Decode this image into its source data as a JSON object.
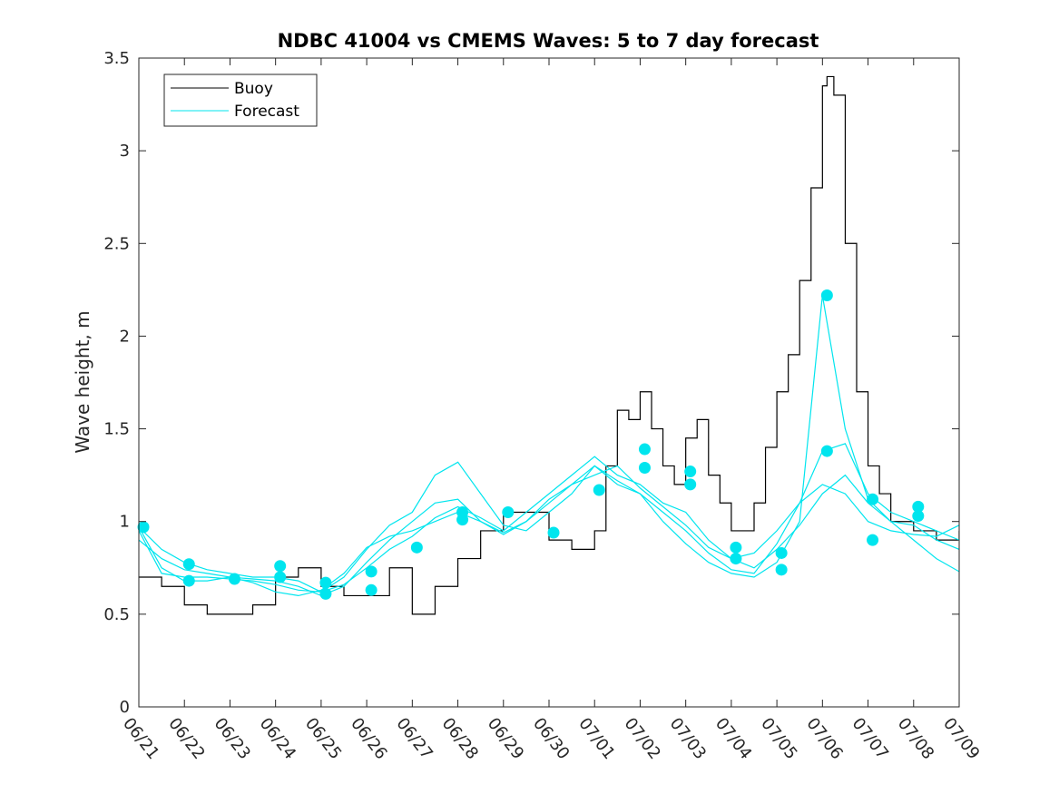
{
  "chart_data": {
    "type": "line",
    "title": "NDBC 41004 vs CMEMS Waves: 5 to 7 day forecast",
    "xlabel": "",
    "ylabel": "Wave height, m",
    "x_ticks": [
      "06/21",
      "06/22",
      "06/23",
      "06/24",
      "06/25",
      "06/26",
      "06/27",
      "06/28",
      "06/29",
      "06/30",
      "07/01",
      "07/02",
      "07/03",
      "07/04",
      "07/05",
      "07/06",
      "07/07",
      "07/08",
      "07/09"
    ],
    "y_ticks": [
      "0",
      "0.5",
      "1",
      "1.5",
      "2",
      "2.5",
      "3",
      "3.5"
    ],
    "xlim": [
      0,
      18
    ],
    "ylim": [
      0,
      3.5
    ],
    "grid": false,
    "legend_position": "top-left",
    "legend": [
      {
        "name": "Buoy",
        "color": "#000000"
      },
      {
        "name": "Forecast",
        "color": "#00e5ee"
      }
    ],
    "buoy_color": "#000000",
    "forecast_color": "#00e5ee",
    "series": [
      {
        "name": "Buoy",
        "x": [
          0,
          0.5,
          1,
          1.5,
          2,
          2.5,
          3,
          3.5,
          4,
          4.5,
          5,
          5.5,
          6,
          6.5,
          7,
          7.5,
          8,
          8.5,
          9,
          9.5,
          10,
          10.25,
          10.5,
          10.75,
          11,
          11.25,
          11.5,
          11.75,
          12,
          12.25,
          12.5,
          12.75,
          13,
          13.5,
          13.75,
          14,
          14.25,
          14.5,
          14.75,
          15,
          15.1,
          15.25,
          15.5,
          15.75,
          16,
          16.25,
          16.5,
          17,
          17.5,
          18
        ],
        "y": [
          0.7,
          0.65,
          0.55,
          0.5,
          0.5,
          0.55,
          0.7,
          0.75,
          0.65,
          0.6,
          0.6,
          0.75,
          0.5,
          0.65,
          0.8,
          0.95,
          1.05,
          1.05,
          0.9,
          0.85,
          0.95,
          1.3,
          1.6,
          1.55,
          1.7,
          1.5,
          1.3,
          1.2,
          1.45,
          1.55,
          1.25,
          1.1,
          0.95,
          1.1,
          1.4,
          1.7,
          1.9,
          2.3,
          2.8,
          3.35,
          3.4,
          3.3,
          2.5,
          1.7,
          1.3,
          1.15,
          1.0,
          0.95,
          0.9,
          0.95
        ]
      },
      {
        "name": "Forecast",
        "x": [
          0,
          0.5,
          1,
          1.5,
          2,
          2.5,
          3,
          3.5,
          4,
          4.5,
          5,
          5.5,
          6,
          6.5,
          7,
          7.5,
          8,
          8.5,
          9,
          9.5,
          10,
          10.5,
          11,
          11.5,
          12,
          12.5,
          13,
          13.5,
          14,
          14.5,
          15,
          15.5,
          16,
          16.5,
          17,
          17.5,
          18
        ],
        "y": [
          0.97,
          0.85,
          0.78,
          0.74,
          0.72,
          0.7,
          0.7,
          0.68,
          0.62,
          0.66,
          0.75,
          0.85,
          0.92,
          1.02,
          1.08,
          1.02,
          0.95,
          1.05,
          1.15,
          1.25,
          1.35,
          1.25,
          1.2,
          1.1,
          1.05,
          0.9,
          0.8,
          0.75,
          0.85,
          0.98,
          1.15,
          1.25,
          1.1,
          1.0,
          0.98,
          0.9,
          0.85
        ]
      },
      {
        "name": "",
        "x": [
          0,
          0.5,
          1,
          1.5,
          2,
          2.5,
          3,
          3.5,
          4,
          4.5,
          5,
          5.5,
          6,
          6.5,
          7,
          7.5,
          8,
          8.5,
          9,
          9.5,
          10,
          10.5,
          11,
          11.5,
          12,
          12.5,
          13,
          13.5,
          14,
          14.5,
          15,
          15.5,
          16,
          16.5,
          17,
          17.5,
          18
        ],
        "y": [
          0.9,
          0.8,
          0.74,
          0.72,
          0.7,
          0.69,
          0.68,
          0.65,
          0.6,
          0.65,
          0.78,
          0.9,
          1.0,
          1.1,
          1.12,
          1.0,
          0.93,
          1.0,
          1.1,
          1.2,
          1.3,
          1.22,
          1.15,
          1.05,
          0.95,
          0.83,
          0.74,
          0.72,
          0.88,
          1.1,
          1.38,
          1.42,
          1.15,
          1.05,
          1.0,
          0.95,
          0.9
        ]
      },
      {
        "name": "",
        "x": [
          0,
          0.5,
          1,
          1.5,
          2,
          2.5,
          3,
          3.5,
          4,
          4.5,
          5,
          5.5,
          6,
          6.5,
          7,
          7.5,
          8,
          8.5,
          9,
          9.5,
          10,
          10.5,
          11,
          11.5,
          12,
          12.5,
          13,
          13.5,
          14,
          14.5,
          15,
          15.5,
          16,
          16.5,
          17,
          17.5,
          18
        ],
        "y": [
          0.95,
          0.72,
          0.7,
          0.7,
          0.69,
          0.68,
          0.66,
          0.63,
          0.62,
          0.7,
          0.85,
          0.98,
          1.05,
          1.25,
          1.32,
          1.15,
          0.98,
          0.95,
          1.05,
          1.15,
          1.3,
          1.2,
          1.15,
          1.0,
          0.88,
          0.78,
          0.72,
          0.7,
          0.78,
          1.0,
          2.22,
          1.5,
          1.12,
          1.0,
          0.9,
          0.8,
          0.73
        ]
      },
      {
        "name": "",
        "x": [
          0,
          0.5,
          1,
          1.5,
          2,
          2.5,
          3,
          3.5,
          4,
          4.5,
          5,
          5.5,
          6,
          6.5,
          7,
          7.5,
          8,
          8.5,
          9,
          9.5,
          10,
          10.5,
          11,
          11.5,
          12,
          12.5,
          13,
          13.5,
          14,
          14.5,
          15,
          15.5,
          16,
          16.5,
          17,
          17.5,
          18
        ],
        "y": [
          0.97,
          0.75,
          0.68,
          0.68,
          0.7,
          0.67,
          0.62,
          0.6,
          0.63,
          0.72,
          0.86,
          0.92,
          0.95,
          1.0,
          1.05,
          1.0,
          0.94,
          1.0,
          1.12,
          1.2,
          1.25,
          1.3,
          1.18,
          1.08,
          0.98,
          0.86,
          0.8,
          0.83,
          0.95,
          1.1,
          1.2,
          1.15,
          1.0,
          0.95,
          0.93,
          0.92,
          0.98
        ]
      }
    ],
    "forecast_markers": {
      "x": [
        0.1,
        1.1,
        1.1,
        2.1,
        3.1,
        3.1,
        4.1,
        4.1,
        5.1,
        5.1,
        6.1,
        7.1,
        7.1,
        8.1,
        9.1,
        10.1,
        11.1,
        11.1,
        12.1,
        12.1,
        13.1,
        13.1,
        14.1,
        14.1,
        15.1,
        15.1,
        16.1,
        16.1,
        17.1,
        17.1
      ],
      "y": [
        0.97,
        0.77,
        0.68,
        0.69,
        0.76,
        0.7,
        0.67,
        0.61,
        0.73,
        0.63,
        0.86,
        1.05,
        1.01,
        1.05,
        0.94,
        1.17,
        1.39,
        1.29,
        1.27,
        1.2,
        0.86,
        0.8,
        0.83,
        0.74,
        2.22,
        1.38,
        1.12,
        0.9,
        1.08,
        1.03
      ]
    }
  }
}
